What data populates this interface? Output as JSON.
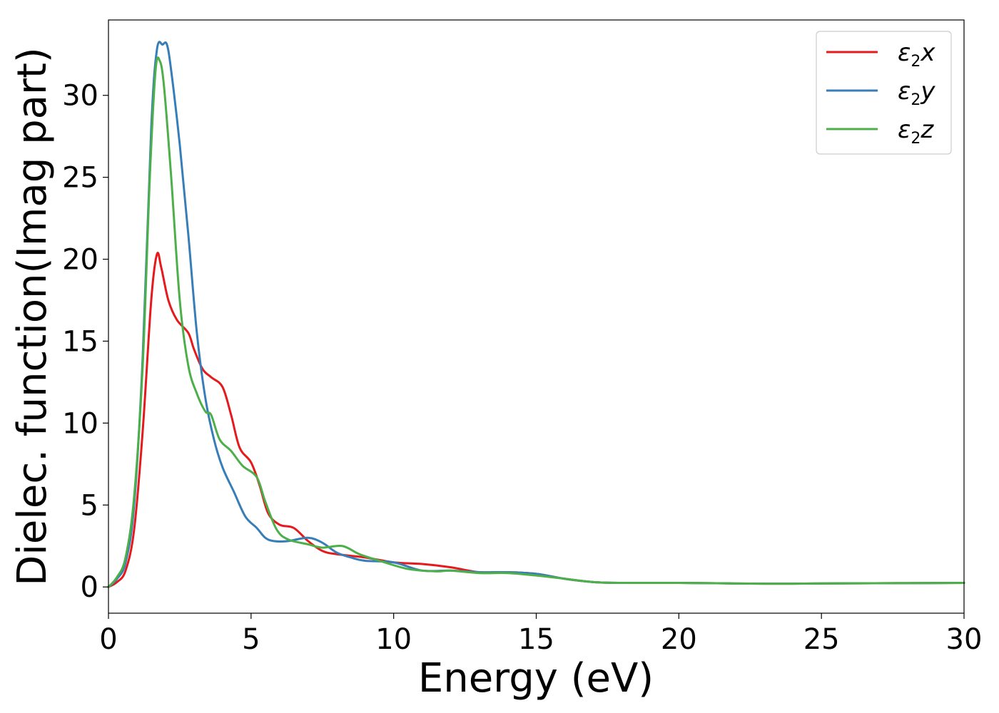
{
  "chart_data": {
    "type": "line",
    "title": "",
    "xlabel": "Energy (eV)",
    "ylabel": "Dielec. function(Imag part)",
    "xlim": [
      0,
      30
    ],
    "ylim": [
      -1.6,
      34.6
    ],
    "xticks": [
      0,
      5,
      10,
      15,
      20,
      25,
      30
    ],
    "yticks": [
      0,
      5,
      10,
      15,
      20,
      25,
      30
    ],
    "grid": false,
    "legend_position": "top-right",
    "series": [
      {
        "name": "ε₂x",
        "legend_base": "ε",
        "legend_sub": "2",
        "legend_suffix": "x",
        "color": "#e41a1c",
        "points": [
          [
            0,
            0
          ],
          [
            0.3,
            0.3
          ],
          [
            0.6,
            1.0
          ],
          [
            0.9,
            3.5
          ],
          [
            1.2,
            9.5
          ],
          [
            1.5,
            17.5
          ],
          [
            1.7,
            20.3
          ],
          [
            1.85,
            19.5
          ],
          [
            2.1,
            17.5
          ],
          [
            2.4,
            16.3
          ],
          [
            2.8,
            15.5
          ],
          [
            3.0,
            14.5
          ],
          [
            3.3,
            13.3
          ],
          [
            3.6,
            12.8
          ],
          [
            4.0,
            12.2
          ],
          [
            4.3,
            10.5
          ],
          [
            4.6,
            8.5
          ],
          [
            5.0,
            7.6
          ],
          [
            5.3,
            6.2
          ],
          [
            5.6,
            4.5
          ],
          [
            6.0,
            3.8
          ],
          [
            6.5,
            3.6
          ],
          [
            7.0,
            2.8
          ],
          [
            7.5,
            2.2
          ],
          [
            8.0,
            2.0
          ],
          [
            9.0,
            1.8
          ],
          [
            10.0,
            1.5
          ],
          [
            11.0,
            1.4
          ],
          [
            12.0,
            1.2
          ],
          [
            13.0,
            0.9
          ],
          [
            14.0,
            0.9
          ],
          [
            15.0,
            0.8
          ],
          [
            16.0,
            0.5
          ],
          [
            17.0,
            0.3
          ],
          [
            18.0,
            0.25
          ],
          [
            20,
            0.25
          ],
          [
            23,
            0.2
          ],
          [
            26,
            0.22
          ],
          [
            30,
            0.25
          ]
        ]
      },
      {
        "name": "ε₂y",
        "legend_base": "ε",
        "legend_sub": "2",
        "legend_suffix": "y",
        "color": "#377eb8",
        "points": [
          [
            0,
            0
          ],
          [
            0.3,
            0.5
          ],
          [
            0.6,
            1.5
          ],
          [
            0.9,
            5.0
          ],
          [
            1.2,
            14.0
          ],
          [
            1.5,
            28.0
          ],
          [
            1.7,
            32.8
          ],
          [
            1.9,
            33.1
          ],
          [
            2.05,
            33.1
          ],
          [
            2.2,
            31.5
          ],
          [
            2.5,
            27.0
          ],
          [
            2.8,
            21.5
          ],
          [
            3.1,
            15.5
          ],
          [
            3.4,
            11.5
          ],
          [
            3.7,
            9.0
          ],
          [
            4.0,
            7.3
          ],
          [
            4.4,
            5.8
          ],
          [
            4.8,
            4.3
          ],
          [
            5.2,
            3.6
          ],
          [
            5.5,
            3.0
          ],
          [
            5.8,
            2.8
          ],
          [
            6.3,
            2.8
          ],
          [
            7.0,
            3.0
          ],
          [
            7.5,
            2.7
          ],
          [
            8.0,
            2.1
          ],
          [
            8.5,
            1.8
          ],
          [
            9.0,
            1.6
          ],
          [
            10.0,
            1.5
          ],
          [
            11.0,
            1.0
          ],
          [
            12.0,
            1.0
          ],
          [
            13.0,
            0.9
          ],
          [
            14.0,
            0.9
          ],
          [
            15.0,
            0.8
          ],
          [
            16.0,
            0.5
          ],
          [
            17.0,
            0.3
          ],
          [
            18.0,
            0.25
          ],
          [
            20,
            0.25
          ],
          [
            23,
            0.2
          ],
          [
            26,
            0.22
          ],
          [
            30,
            0.25
          ]
        ]
      },
      {
        "name": "ε₂z",
        "legend_base": "ε",
        "legend_sub": "2",
        "legend_suffix": "z",
        "color": "#4daf4a",
        "points": [
          [
            0,
            0
          ],
          [
            0.3,
            0.6
          ],
          [
            0.6,
            1.8
          ],
          [
            0.9,
            5.5
          ],
          [
            1.2,
            13.5
          ],
          [
            1.45,
            25.0
          ],
          [
            1.65,
            31.5
          ],
          [
            1.8,
            32.1
          ],
          [
            1.95,
            30.5
          ],
          [
            2.2,
            25.0
          ],
          [
            2.5,
            17.5
          ],
          [
            2.8,
            13.5
          ],
          [
            3.1,
            11.8
          ],
          [
            3.4,
            10.7
          ],
          [
            3.6,
            10.5
          ],
          [
            3.9,
            9.0
          ],
          [
            4.3,
            8.3
          ],
          [
            4.7,
            7.4
          ],
          [
            5.2,
            6.7
          ],
          [
            5.5,
            5.2
          ],
          [
            5.9,
            3.5
          ],
          [
            6.3,
            2.9
          ],
          [
            7.0,
            2.6
          ],
          [
            7.5,
            2.4
          ],
          [
            8.2,
            2.5
          ],
          [
            8.8,
            2.0
          ],
          [
            9.5,
            1.6
          ],
          [
            10.5,
            1.1
          ],
          [
            11.5,
            0.95
          ],
          [
            12.0,
            1.0
          ],
          [
            13.0,
            0.85
          ],
          [
            14.0,
            0.85
          ],
          [
            15.0,
            0.7
          ],
          [
            16.0,
            0.5
          ],
          [
            17.0,
            0.3
          ],
          [
            18.0,
            0.25
          ],
          [
            20,
            0.25
          ],
          [
            23,
            0.2
          ],
          [
            26,
            0.22
          ],
          [
            30,
            0.25
          ]
        ]
      }
    ]
  }
}
